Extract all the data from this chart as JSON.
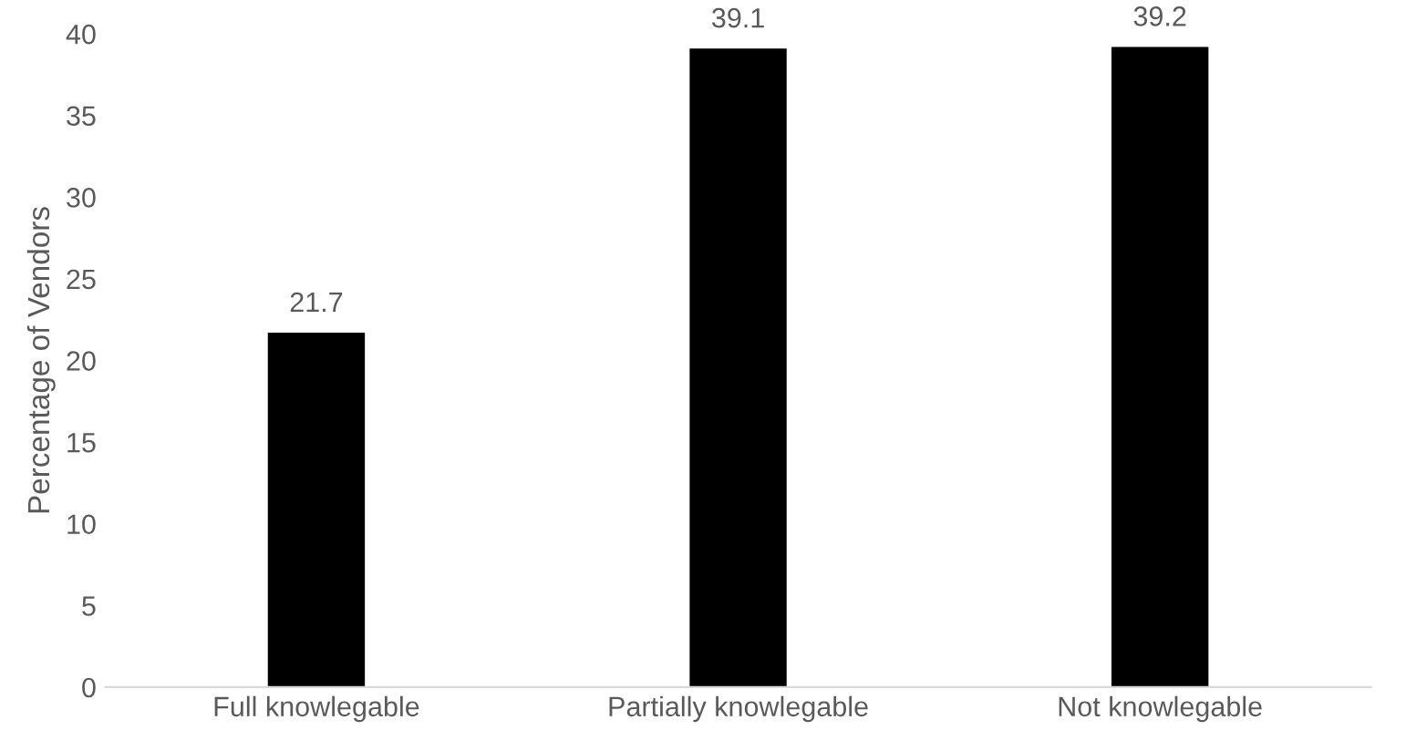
{
  "chart_data": {
    "type": "bar",
    "ylabel": "Percentage of Vendors",
    "categories": [
      "Full knowlegable",
      "Partially knowlegable",
      "Not knowlegable"
    ],
    "values": [
      21.7,
      39.1,
      39.2
    ],
    "color": "#000000",
    "ylim": [
      0,
      40
    ],
    "yticks": [
      0,
      5,
      10,
      15,
      20,
      25,
      30,
      35,
      40
    ],
    "data_labels": true,
    "grid": false,
    "legend": false
  }
}
